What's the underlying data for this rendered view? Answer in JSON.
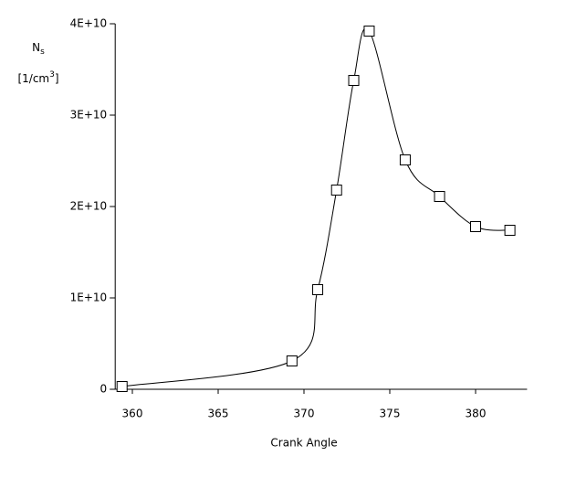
{
  "chart_data": {
    "type": "line",
    "x_label": "Crank Angle",
    "y_label": {
      "symbol": "N",
      "subscript": "s",
      "unit_prefix": "[1/cm",
      "unit_superscript": "3",
      "unit_suffix": "]"
    },
    "x": [
      359.4,
      369.3,
      370.8,
      371.9,
      372.9,
      373.8,
      375.9,
      377.9,
      380.0,
      382.0
    ],
    "series": [
      {
        "color": "#000000",
        "marker": "square",
        "values": [
          300000000,
          3100000000,
          10900000000,
          21800000000,
          33800000000,
          39200000000,
          25100000000,
          21100000000,
          17800000000,
          17400000000
        ]
      }
    ],
    "xlim": [
      359,
      383
    ],
    "xticks": [
      360,
      365,
      370,
      375,
      380
    ],
    "ylim": [
      0,
      40000000000
    ],
    "yticks": [
      0,
      {
        "value": 10000000000,
        "label": "1E+10"
      },
      {
        "value": 20000000000,
        "label": "2E+10"
      },
      {
        "value": 30000000000,
        "label": "3E+10"
      },
      {
        "value": 40000000000,
        "label": "4E+10"
      }
    ]
  }
}
